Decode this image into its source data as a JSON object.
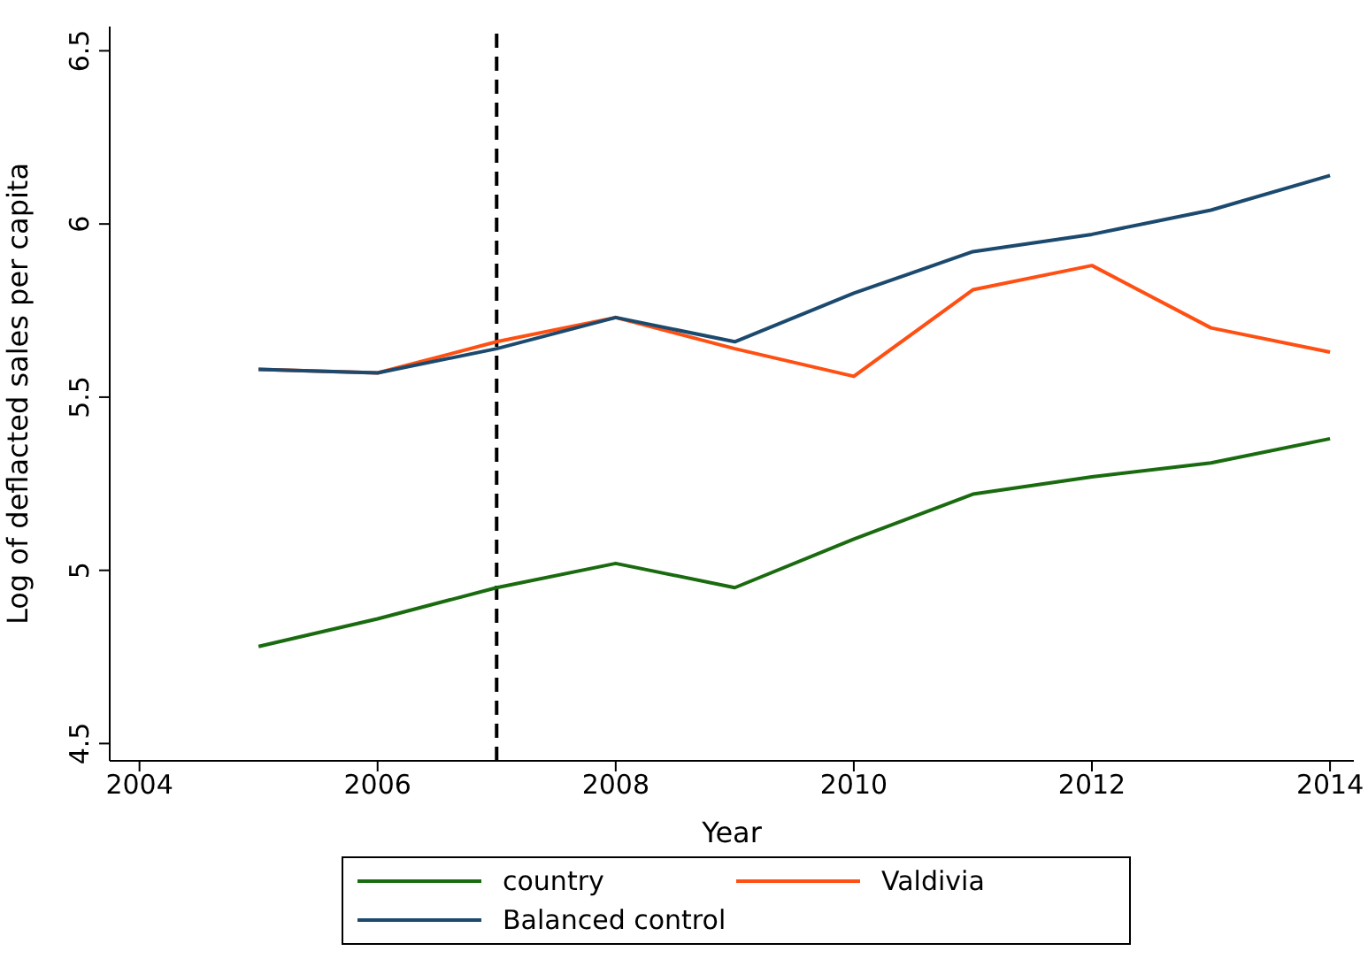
{
  "chart_data": {
    "type": "line",
    "xlabel": "Year",
    "ylabel": "Log of deflacted sales per capita",
    "x": [
      2005,
      2006,
      2007,
      2008,
      2009,
      2010,
      2011,
      2012,
      2013,
      2014
    ],
    "series": [
      {
        "name": "country",
        "color": "#1a6b0f",
        "values": [
          4.78,
          4.86,
          4.95,
          5.02,
          4.95,
          5.09,
          5.22,
          5.27,
          5.31,
          5.38
        ]
      },
      {
        "name": "Valdivia",
        "color": "#ff4f12",
        "values": [
          5.58,
          5.57,
          5.66,
          5.73,
          5.64,
          5.56,
          5.81,
          5.88,
          5.7,
          5.63
        ]
      },
      {
        "name": "Balanced control",
        "color": "#1c4a6e",
        "values": [
          5.58,
          5.57,
          5.64,
          5.73,
          5.66,
          5.8,
          5.92,
          5.97,
          6.04,
          6.14
        ]
      }
    ],
    "xlim": [
      2003.75,
      2014.2
    ],
    "xticks": [
      2004,
      2006,
      2008,
      2010,
      2012,
      2014
    ],
    "ylim": [
      4.45,
      6.57
    ],
    "yticks": [
      4.5,
      5,
      5.5,
      6,
      6.5
    ],
    "ref_lines": [
      {
        "axis": "x",
        "value": 2007,
        "color": "#000000",
        "line_style": "dashed"
      }
    ],
    "grid": false,
    "legend": "bottom",
    "marker": "none",
    "line_style": "solid"
  }
}
